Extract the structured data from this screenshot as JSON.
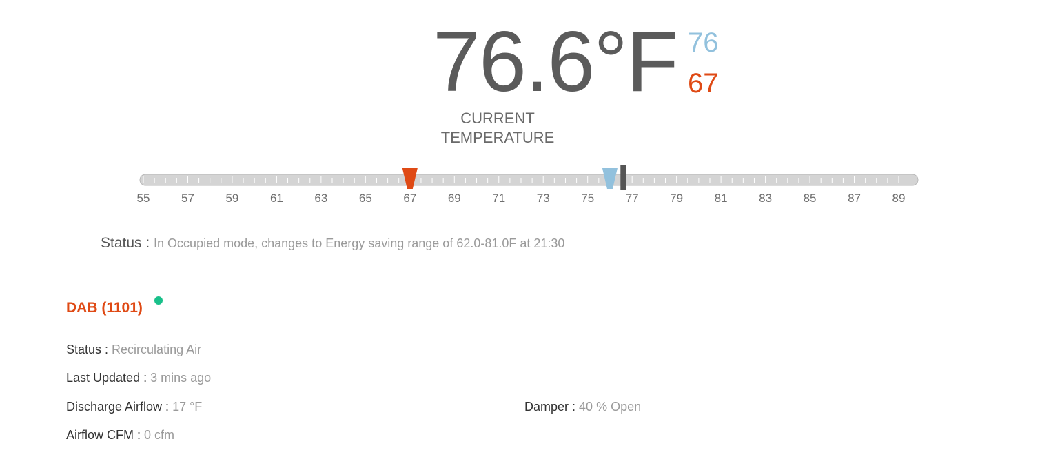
{
  "thermostat": {
    "current_temperature": "76.6°F",
    "current_value": 76.6,
    "cooling_setpoint": "76",
    "cooling_value": 76,
    "heating_setpoint": "67",
    "heating_value": 67,
    "current_label_line1": "CURRENT",
    "current_label_line2": "TEMPERATURE",
    "scale": {
      "min": 55,
      "max": 89,
      "tick_labels": [
        "55",
        "57",
        "59",
        "61",
        "63",
        "65",
        "67",
        "69",
        "71",
        "73",
        "75",
        "77",
        "79",
        "81",
        "83",
        "85",
        "87",
        "89"
      ]
    },
    "colors": {
      "cooling": "#92c1dd",
      "heating": "#df4a15",
      "current_marker": "#555555",
      "track": "#d4d4d4"
    }
  },
  "zone_status": {
    "label": "Status :",
    "value": "In Occupied mode, changes to Energy saving range of 62.0-81.0F at 21:30"
  },
  "dab": {
    "title": "DAB (1101)",
    "online_color": "#19c08a",
    "status_label": "Status :",
    "status_value": "Recirculating Air",
    "updated_label": "Last Updated :",
    "updated_value": "3 mins ago",
    "discharge_label": "Discharge Airflow :",
    "discharge_value": "17 °F",
    "damper_label": "Damper :",
    "damper_value": "40 % Open",
    "cfm_label": "Airflow CFM :",
    "cfm_value": "0 cfm"
  }
}
